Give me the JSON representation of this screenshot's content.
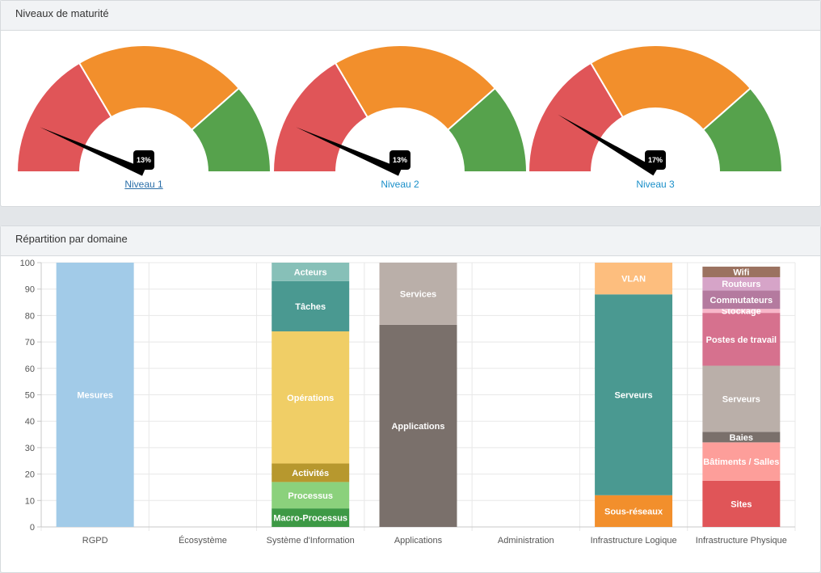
{
  "gauges_panel": {
    "title": "Niveaux de maturité",
    "gauges": [
      {
        "label": "Niveau 1",
        "value_text": "13%",
        "value": 13
      },
      {
        "label": "Niveau 2",
        "value_text": "13%",
        "value": 13
      },
      {
        "label": "Niveau 3",
        "value_text": "17%",
        "value": 17
      }
    ],
    "zone_colors": [
      "#e05558",
      "#f28f2c",
      "#56a24c"
    ]
  },
  "chart_panel": {
    "title": "Répartition par domaine"
  },
  "chart_data": {
    "type": "bar",
    "stacked": true,
    "ylim": [
      0,
      100
    ],
    "yticks": [
      0,
      10,
      20,
      30,
      40,
      50,
      60,
      70,
      80,
      90,
      100
    ],
    "grid": true,
    "categories": [
      "RGPD",
      "Écosystème",
      "Système d'Information",
      "Applications",
      "Administration",
      "Infrastructure Logique",
      "Infrastructure Physique"
    ],
    "stacks": [
      [
        {
          "name": "Mesures",
          "value": 100,
          "color": "#a2cbe8"
        }
      ],
      [],
      [
        {
          "name": "Macro-Processus",
          "value": 7,
          "color": "#3d9945"
        },
        {
          "name": "Processus",
          "value": 10,
          "color": "#8bd17c"
        },
        {
          "name": "Activités",
          "value": 7,
          "color": "#b7982e"
        },
        {
          "name": "Opérations",
          "value": 50,
          "color": "#f0ce66"
        },
        {
          "name": "Tâches",
          "value": 19,
          "color": "#4a9991"
        },
        {
          "name": "Acteurs",
          "value": 7,
          "color": "#87c0b8"
        }
      ],
      [
        {
          "name": "Applications",
          "value": 76.5,
          "color": "#7a706b"
        },
        {
          "name": "Services",
          "value": 23.5,
          "color": "#baafa9"
        }
      ],
      [],
      [
        {
          "name": "Sous-réseaux",
          "value": 12,
          "color": "#f28f2c"
        },
        {
          "name": "Serveurs",
          "value": 76,
          "color": "#4a9991"
        },
        {
          "name": "VLAN",
          "value": 12,
          "color": "#fdbe7e"
        }
      ],
      [
        {
          "name": "Sites",
          "value": 17.5,
          "color": "#e05558"
        },
        {
          "name": "Bâtiments / Salles",
          "value": 14.5,
          "color": "#fd9e9a"
        },
        {
          "name": "Baies",
          "value": 4,
          "color": "#7a706b"
        },
        {
          "name": "Serveurs",
          "value": 25,
          "color": "#baafa9"
        },
        {
          "name": "Postes de travail",
          "value": 20,
          "color": "#d6718e"
        },
        {
          "name": "Stockage",
          "value": 1.5,
          "color": "#f8b7ca"
        },
        {
          "name": "Commutateurs",
          "value": 7,
          "color": "#b47a9f"
        },
        {
          "name": "Routeurs",
          "value": 5,
          "color": "#d6a4c8"
        },
        {
          "name": "Wifi",
          "value": 4,
          "color": "#9b7260"
        }
      ]
    ]
  }
}
